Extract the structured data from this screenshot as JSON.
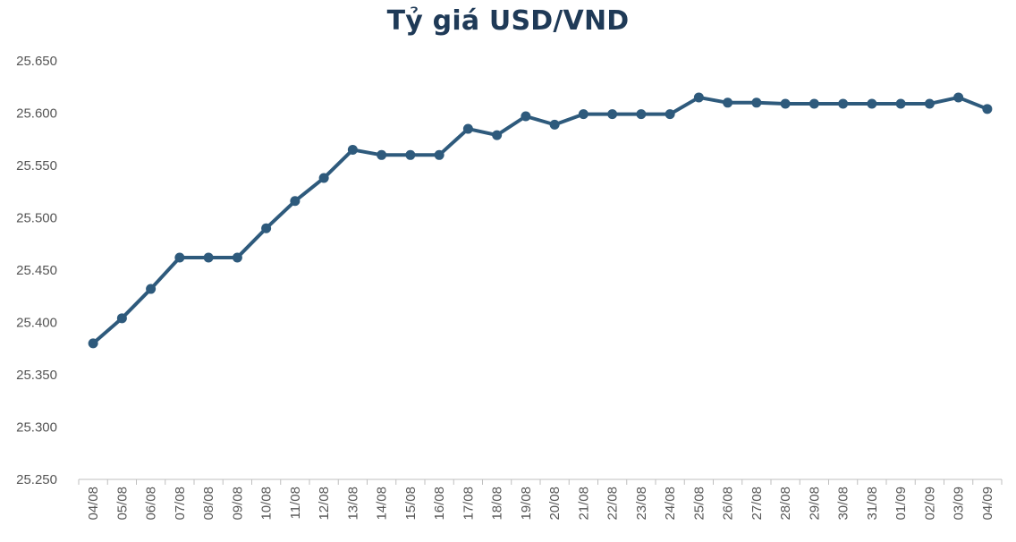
{
  "chart_data": {
    "type": "line",
    "title": "Tỷ giá USD/VND",
    "xlabel": "",
    "ylabel": "",
    "categories": [
      "04/08",
      "05/08",
      "06/08",
      "07/08",
      "08/08",
      "09/08",
      "10/08",
      "11/08",
      "12/08",
      "13/08",
      "14/08",
      "15/08",
      "16/08",
      "17/08",
      "18/08",
      "19/08",
      "20/08",
      "21/08",
      "22/08",
      "23/08",
      "24/08",
      "25/08",
      "26/08",
      "27/08",
      "28/08",
      "29/08",
      "30/08",
      "31/08",
      "01/09",
      "02/09",
      "03/09",
      "04/09"
    ],
    "series": [
      {
        "values": [
          25380,
          25404,
          25432,
          25462,
          25462,
          25462,
          25490,
          25516,
          25538,
          25565,
          25560,
          25560,
          25560,
          25585,
          25579,
          25597,
          25589,
          25599,
          25599,
          25599,
          25599,
          25615,
          25610,
          25610,
          25609,
          25609,
          25609,
          25609,
          25609,
          25609,
          25615,
          25604
        ]
      }
    ],
    "ylim": [
      25250,
      25650
    ],
    "yticks": [
      25250,
      25300,
      25350,
      25400,
      25450,
      25500,
      25550,
      25600,
      25650
    ],
    "ytick_labels": [
      "25.250",
      "25.300",
      "25.350",
      "25.400",
      "25.450",
      "25.500",
      "25.550",
      "25.600",
      "25.650"
    ],
    "grid": false,
    "legend": "none",
    "colors": {
      "line": "#2e5a7c",
      "title": "#1f3a57",
      "axis": "#bfbfbf",
      "text": "#555555"
    }
  }
}
